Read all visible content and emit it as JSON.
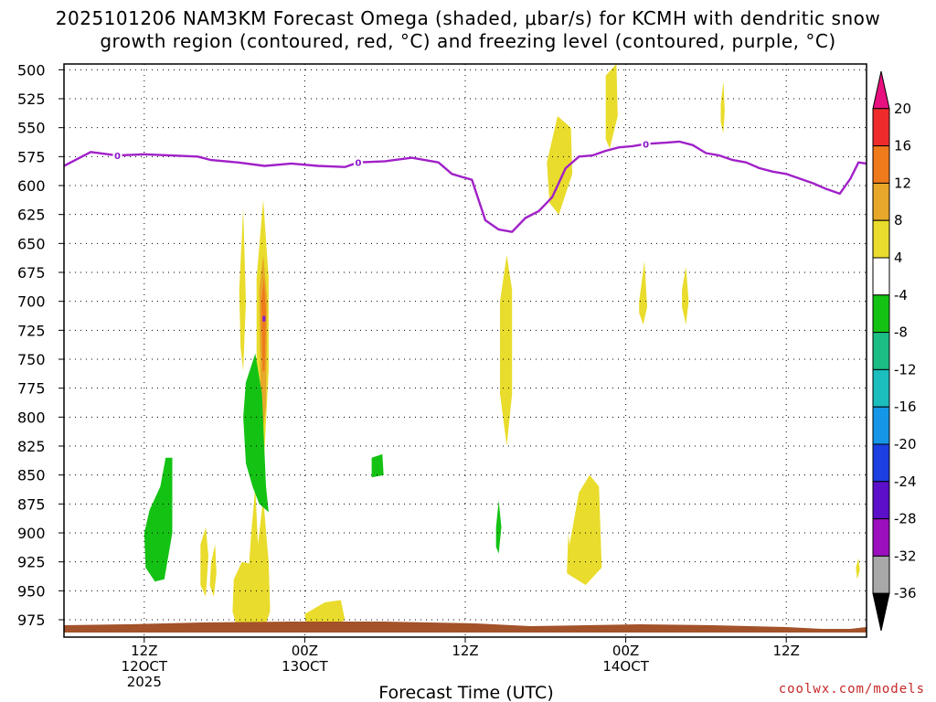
{
  "title_line1": "2025101206 NAM3KM Forecast Omega (shaded, μbar/s) for KCMH with dendritic snow",
  "title_line2": "growth region (contoured, red, °C) and freezing level (contoured, purple, °C)",
  "credit": "coolwx.com/models",
  "chart_data": {
    "type": "heatmap",
    "xlabel": "Forecast Time (UTC)",
    "x_unit": "forecast hour",
    "xlim": [
      0,
      60
    ],
    "y_unit": "hPa",
    "ylim": [
      990,
      495
    ],
    "y_ticks": [
      500,
      525,
      550,
      575,
      600,
      625,
      650,
      675,
      700,
      725,
      750,
      775,
      800,
      825,
      850,
      875,
      900,
      925,
      950,
      975
    ],
    "x_ticks": [
      {
        "hour": 6,
        "lines": [
          "12Z",
          "12OCT",
          "2025"
        ]
      },
      {
        "hour": 18,
        "lines": [
          "00Z",
          "13OCT"
        ]
      },
      {
        "hour": 30,
        "lines": [
          "12Z"
        ]
      },
      {
        "hour": 42,
        "lines": [
          "00Z",
          "14OCT"
        ]
      },
      {
        "hour": 54,
        "lines": [
          "12Z"
        ]
      }
    ],
    "colorbar": {
      "ticks": [
        "20",
        "16",
        "12",
        "8",
        "4",
        "-4",
        "-8",
        "-12",
        "-16",
        "-20",
        "-24",
        "-28",
        "-32",
        "-36"
      ],
      "colors": [
        "#e8107e",
        "#ef2b2b",
        "#ef7a1c",
        "#e6a72a",
        "#e9dc2c",
        "#ffffff",
        "#14c214",
        "#1bbd84",
        "#1bbdbd",
        "#1596e6",
        "#1b3fe0",
        "#5b0fc8",
        "#9c0fbf",
        "#a8a8a8",
        "#000000"
      ]
    },
    "omega_regions": [
      {
        "level": "4",
        "color": "#e9dc2c",
        "points": [
          [
            13.7,
            950
          ],
          [
            14.0,
            900
          ],
          [
            14.3,
            860
          ],
          [
            14.6,
            935
          ],
          [
            14.3,
            975
          ],
          [
            14.1,
            982
          ],
          [
            13.8,
            970
          ]
        ]
      },
      {
        "level": "4",
        "color": "#e9dc2c",
        "points": [
          [
            14.4,
            680
          ],
          [
            14.9,
            612
          ],
          [
            15.3,
            680
          ],
          [
            15.3,
            760
          ],
          [
            14.9,
            850
          ],
          [
            14.4,
            760
          ]
        ]
      },
      {
        "level": "8",
        "color": "#e6a72a",
        "points": [
          [
            14.6,
            690
          ],
          [
            14.9,
            660
          ],
          [
            15.2,
            700
          ],
          [
            15.1,
            790
          ],
          [
            14.9,
            810
          ],
          [
            14.7,
            780
          ]
        ]
      },
      {
        "level": "12",
        "color": "#ef7a1c",
        "points": [
          [
            14.75,
            700
          ],
          [
            14.95,
            680
          ],
          [
            15.1,
            710
          ],
          [
            15.0,
            760
          ],
          [
            14.85,
            760
          ]
        ]
      },
      {
        "level": "4",
        "color": "#e9dc2c",
        "points": [
          [
            13.1,
            690
          ],
          [
            13.4,
            620
          ],
          [
            13.6,
            700
          ],
          [
            13.4,
            760
          ],
          [
            13.2,
            740
          ]
        ]
      },
      {
        "level": "4",
        "color": "#e9dc2c",
        "points": [
          [
            12.7,
            940
          ],
          [
            13.3,
            930
          ],
          [
            13.8,
            945
          ],
          [
            14.0,
            970
          ],
          [
            13.4,
            985
          ],
          [
            12.9,
            975
          ]
        ]
      },
      {
        "level": "4",
        "color": "#e9dc2c",
        "points": [
          [
            14.4,
            920
          ],
          [
            14.9,
            870
          ],
          [
            15.3,
            925
          ],
          [
            15.4,
            965
          ],
          [
            14.8,
            988
          ],
          [
            14.4,
            975
          ]
        ]
      },
      {
        "level": "4",
        "color": "#e9dc2c",
        "points": [
          [
            12.7,
            940
          ],
          [
            13.3,
            925
          ],
          [
            15.3,
            930
          ],
          [
            15.4,
            968
          ],
          [
            14.8,
            988
          ],
          [
            13.0,
            984
          ],
          [
            12.6,
            968
          ]
        ]
      },
      {
        "level": "4",
        "color": "#e9dc2c",
        "points": [
          [
            10.2,
            910
          ],
          [
            10.6,
            895
          ],
          [
            10.8,
            920
          ],
          [
            10.6,
            955
          ],
          [
            10.2,
            945
          ]
        ]
      },
      {
        "level": "4",
        "color": "#e9dc2c",
        "points": [
          [
            11.0,
            925
          ],
          [
            11.3,
            910
          ],
          [
            11.4,
            935
          ],
          [
            11.2,
            955
          ],
          [
            10.9,
            945
          ]
        ]
      },
      {
        "level": "4",
        "color": "#e9dc2c",
        "points": [
          [
            18.0,
            970
          ],
          [
            19.5,
            960
          ],
          [
            20.7,
            958
          ],
          [
            21.0,
            975
          ],
          [
            19.8,
            985
          ],
          [
            18.1,
            980
          ]
        ]
      },
      {
        "level": "4",
        "color": "#e9dc2c",
        "points": [
          [
            32.6,
            700
          ],
          [
            33.1,
            660
          ],
          [
            33.5,
            690
          ],
          [
            33.5,
            780
          ],
          [
            33.1,
            825
          ],
          [
            32.6,
            780
          ]
        ]
      },
      {
        "level": "4",
        "color": "#e9dc2c",
        "points": [
          [
            37.8,
            910
          ],
          [
            38.5,
            865
          ],
          [
            39.3,
            850
          ],
          [
            40.0,
            860
          ],
          [
            40.2,
            930
          ],
          [
            39.0,
            945
          ],
          [
            37.6,
            935
          ],
          [
            37.7,
            900
          ]
        ]
      },
      {
        "level": "4",
        "color": "#e9dc2c",
        "points": [
          [
            36.1,
            580
          ],
          [
            36.9,
            540
          ],
          [
            37.9,
            550
          ],
          [
            38.0,
            590
          ],
          [
            37.0,
            625
          ],
          [
            36.3,
            615
          ]
        ]
      },
      {
        "level": "4",
        "color": "#e9dc2c",
        "points": [
          [
            40.5,
            505
          ],
          [
            41.3,
            495
          ],
          [
            41.4,
            540
          ],
          [
            40.8,
            568
          ],
          [
            40.5,
            560
          ]
        ]
      },
      {
        "level": "4",
        "color": "#e9dc2c",
        "points": [
          [
            43.0,
            700
          ],
          [
            43.4,
            665
          ],
          [
            43.6,
            705
          ],
          [
            43.3,
            720
          ],
          [
            43.0,
            710
          ]
        ]
      },
      {
        "level": "4",
        "color": "#e9dc2c",
        "points": [
          [
            46.2,
            690
          ],
          [
            46.5,
            670
          ],
          [
            46.7,
            700
          ],
          [
            46.5,
            720
          ],
          [
            46.2,
            705
          ]
        ]
      },
      {
        "level": "4",
        "color": "#e9dc2c",
        "points": [
          [
            49.1,
            530
          ],
          [
            49.3,
            510
          ],
          [
            49.4,
            535
          ],
          [
            49.3,
            555
          ],
          [
            49.1,
            545
          ]
        ]
      },
      {
        "level": "4",
        "color": "#e9dc2c",
        "points": [
          [
            59.2,
            930
          ],
          [
            59.4,
            922
          ],
          [
            59.5,
            932
          ],
          [
            59.3,
            940
          ]
        ]
      },
      {
        "level": "-4",
        "color": "#14c214",
        "points": [
          [
            6.0,
            900
          ],
          [
            6.4,
            880
          ],
          [
            7.2,
            860
          ],
          [
            7.6,
            835
          ],
          [
            8.1,
            835
          ],
          [
            8.1,
            900
          ],
          [
            7.5,
            940
          ],
          [
            6.8,
            942
          ],
          [
            6.1,
            930
          ]
        ]
      },
      {
        "level": "-4",
        "color": "#14c214",
        "points": [
          [
            13.6,
            770
          ],
          [
            14.3,
            745
          ],
          [
            14.8,
            780
          ],
          [
            15.1,
            860
          ],
          [
            15.3,
            882
          ],
          [
            14.6,
            875
          ],
          [
            14.1,
            860
          ],
          [
            13.6,
            840
          ],
          [
            13.4,
            800
          ]
        ]
      },
      {
        "level": "-4",
        "color": "#14c214",
        "points": [
          [
            13.8,
            805
          ],
          [
            14.0,
            780
          ],
          [
            14.6,
            780
          ],
          [
            14.7,
            810
          ],
          [
            14.6,
            840
          ],
          [
            14.0,
            845
          ]
        ]
      },
      {
        "level": "-4",
        "color": "#14c214",
        "points": [
          [
            23.0,
            835
          ],
          [
            23.8,
            832
          ],
          [
            23.9,
            850
          ],
          [
            23.0,
            852
          ]
        ]
      },
      {
        "level": "-4",
        "color": "#14c214",
        "points": [
          [
            32.3,
            895
          ],
          [
            32.5,
            872
          ],
          [
            32.7,
            895
          ],
          [
            32.5,
            918
          ],
          [
            32.3,
            912
          ]
        ]
      }
    ],
    "freezing_level": {
      "label": "0",
      "color": "#a020c8",
      "points": [
        [
          0,
          583
        ],
        [
          2,
          571
        ],
        [
          4,
          574
        ],
        [
          6,
          573
        ],
        [
          8,
          574
        ],
        [
          10,
          575
        ],
        [
          11,
          578
        ],
        [
          13,
          580
        ],
        [
          15,
          583
        ],
        [
          17,
          581
        ],
        [
          19,
          583
        ],
        [
          21,
          584
        ],
        [
          22,
          580
        ],
        [
          24,
          579
        ],
        [
          26,
          576
        ],
        [
          28,
          580
        ],
        [
          29,
          590
        ],
        [
          30.5,
          595
        ],
        [
          31.5,
          630
        ],
        [
          32.5,
          638
        ],
        [
          33.5,
          640
        ],
        [
          34.5,
          628
        ],
        [
          35.5,
          622
        ],
        [
          36.5,
          610
        ],
        [
          37.5,
          585
        ],
        [
          38.5,
          575
        ],
        [
          39.5,
          574
        ],
        [
          40.5,
          570
        ],
        [
          41.5,
          567
        ],
        [
          42.5,
          566
        ],
        [
          43.5,
          564
        ],
        [
          45,
          563
        ],
        [
          46,
          562
        ],
        [
          47,
          565
        ],
        [
          48,
          572
        ],
        [
          49,
          574
        ],
        [
          50,
          578
        ],
        [
          51,
          580
        ],
        [
          52,
          585
        ],
        [
          53,
          588
        ],
        [
          54,
          590
        ],
        [
          55,
          594
        ],
        [
          56,
          598
        ],
        [
          57,
          603
        ],
        [
          58,
          607
        ],
        [
          58.8,
          594
        ],
        [
          59.4,
          580
        ],
        [
          60,
          581
        ]
      ]
    }
  }
}
